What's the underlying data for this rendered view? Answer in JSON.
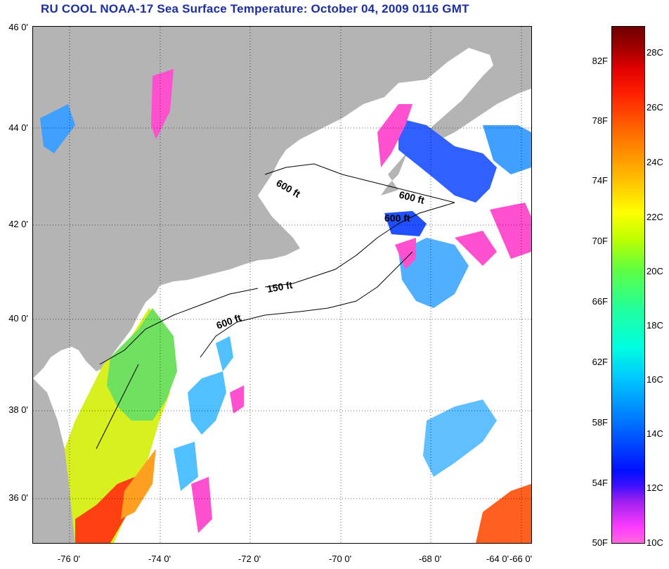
{
  "title": "RU COOL  NOAA-17  Sea Surface Temperature:  October 04, 2009 0116 GMT",
  "map": {
    "lat_labels": [
      "46 0'",
      "44 0'",
      "42 0'",
      "40 0'",
      "38 0'",
      "36 0'"
    ],
    "lon_labels": [
      "-76 0'",
      "-74 0'",
      "-72 0'",
      "-70 0'",
      "-68 0'",
      "-66 0'",
      "-64 0'"
    ],
    "contours": [
      "600 ft",
      "600 ft",
      "600 ft",
      "150 ft",
      "600 ft"
    ],
    "colors": {
      "land": "#b4b4b4",
      "cloud": "#ffffff",
      "title": "#1c2fa0"
    }
  },
  "colorbar": {
    "fahrenheit": [
      "82F",
      "78F",
      "74F",
      "70F",
      "66F",
      "62F",
      "58F",
      "54F",
      "50F"
    ],
    "celsius": [
      "28C",
      "26C",
      "24C",
      "22C",
      "20C",
      "18C",
      "16C",
      "14C",
      "12C",
      "10C"
    ]
  }
}
